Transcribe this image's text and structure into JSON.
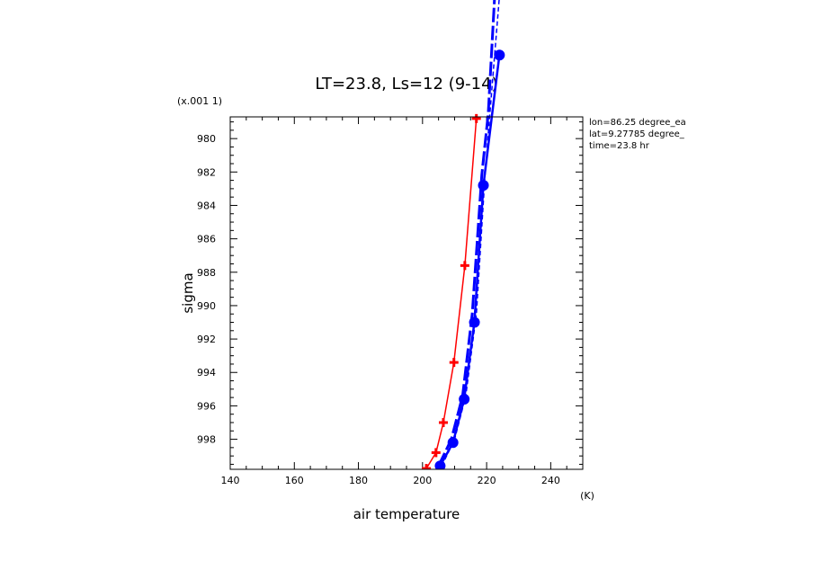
{
  "chart_data": {
    "type": "line",
    "title": "LT=23.8, Ls=12 (9-14)",
    "xlabel": "air temperature",
    "ylabel": "sigma",
    "x_units": "(K)",
    "y_scale_note": "(x.001 1)",
    "xlim": [
      140,
      250
    ],
    "ylim": [
      999.8,
      978.7
    ],
    "x_ticks": [
      140,
      160,
      180,
      200,
      220,
      240
    ],
    "y_ticks": [
      980,
      982,
      984,
      986,
      988,
      990,
      992,
      994,
      996,
      998
    ],
    "info_lines": [
      "lon=86.25 degree_ea",
      "lat=9.27785 degree_",
      "time=23.8 hr"
    ],
    "grid": false,
    "series": [
      {
        "color": "#ff0000",
        "style": "solid-plus-markers",
        "x": [
          201.2,
          204.2,
          206.5,
          209.8,
          213.2,
          216.8
        ],
        "y": [
          999.75,
          998.8,
          997.0,
          993.4,
          987.6,
          978.8
        ]
      },
      {
        "color": "#0000ff",
        "style": "solid-circle-markers",
        "x": [
          205.5,
          209.5,
          213.0,
          216.2,
          219.0,
          224.0
        ],
        "y": [
          999.6,
          998.2,
          995.6,
          991.0,
          982.8,
          975.0
        ]
      },
      {
        "color": "#0000ff",
        "style": "long-dash",
        "x": [
          205.0,
          209.0,
          212.5,
          215.5,
          218.5,
          220.5,
          222.5
        ],
        "y": [
          999.6,
          998.0,
          995.4,
          990.5,
          982.2,
          978.5,
          971.5
        ]
      },
      {
        "color": "#0000ff",
        "style": "short-dash",
        "x": [
          206.0,
          210.0,
          213.5,
          216.8,
          219.5,
          221.0,
          224.0
        ],
        "y": [
          999.6,
          998.0,
          995.4,
          990.5,
          982.2,
          978.5,
          971.5
        ]
      }
    ]
  }
}
